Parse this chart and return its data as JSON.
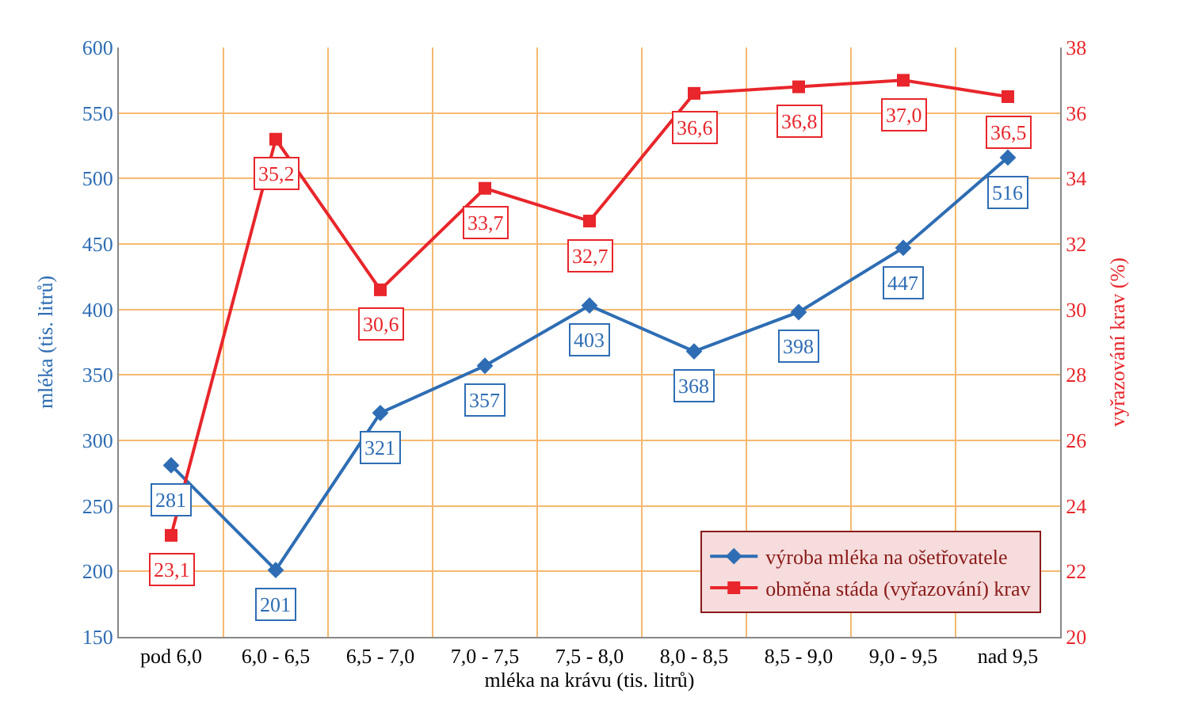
{
  "chart_data": {
    "type": "line",
    "xlabel": "mléka na krávu (tis. litrů)",
    "ylabel": "mléka (tis. litrů)",
    "y2label": "vyřazování krav (%)",
    "categories": [
      "pod 6,0",
      "6,0 - 6,5",
      "6,5 - 7,0",
      "7,0 - 7,5",
      "7,5 - 8,0",
      "8,0 - 8,5",
      "8,5 - 9,0",
      "9,0 - 9,5",
      "nad 9,5"
    ],
    "series": [
      {
        "name": "výroba mléka na ošetřovatele",
        "color": "#2e6db4",
        "marker": "diamond",
        "values": [
          281,
          201,
          321,
          357,
          403,
          368,
          398,
          447,
          516
        ],
        "value_labels": [
          "281",
          "201",
          "321",
          "357",
          "403",
          "368",
          "398",
          "447",
          "516"
        ]
      },
      {
        "name": "obměna stáda (vyřazování) krav",
        "color": "#e8262b",
        "marker": "square",
        "axis": "y2",
        "values": [
          23.1,
          35.2,
          30.6,
          33.7,
          32.7,
          36.6,
          36.8,
          37.0,
          36.5
        ],
        "value_labels": [
          "23,1",
          "35,2",
          "30,6",
          "33,7",
          "32,7",
          "36,6",
          "36,8",
          "37,0",
          "36,5"
        ]
      }
    ],
    "ylim": [
      150,
      600
    ],
    "yticks": [
      150,
      200,
      250,
      300,
      350,
      400,
      450,
      500,
      550,
      600
    ],
    "y2lim": [
      20,
      38
    ],
    "y2ticks": [
      20,
      22,
      24,
      26,
      28,
      30,
      32,
      34,
      36,
      38
    ],
    "grid": true,
    "legend": "bottom right"
  }
}
